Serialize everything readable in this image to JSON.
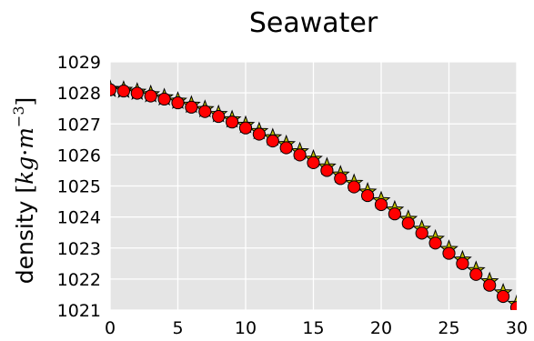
{
  "chart_data": {
    "type": "line",
    "title": "Seawater",
    "ylabel": {
      "prefix": "density ",
      "open_bracket": "[",
      "unit_kg": "kg",
      "unit_dot": "·",
      "unit_m": "m",
      "unit_exp": "−3",
      "close_bracket": "]"
    },
    "xlabel": "",
    "xlim": [
      0,
      30
    ],
    "ylim": [
      1021,
      1029
    ],
    "x_ticks": [
      0,
      5,
      10,
      15,
      20,
      25,
      30
    ],
    "y_ticks": [
      1021,
      1022,
      1023,
      1024,
      1025,
      1026,
      1027,
      1028,
      1029
    ],
    "grid": true,
    "colors": {
      "background": "#e5e5e5",
      "grid": "#ffffff",
      "circle_fill": "#ff0000",
      "circle_edge": "#000000",
      "star_fill": "#bfbf00",
      "star_edge": "#000000"
    },
    "series": [
      {
        "marker": "star",
        "x": [
          0,
          1,
          2,
          3,
          4,
          5,
          6,
          7,
          8,
          9,
          10,
          11,
          12,
          13,
          14,
          15,
          16,
          17,
          18,
          19,
          20,
          21,
          22,
          23,
          24,
          25,
          26,
          27,
          28,
          29,
          30
        ],
        "y": [
          1028.12,
          1028.09,
          1028.03,
          1027.95,
          1027.85,
          1027.74,
          1027.61,
          1027.47,
          1027.31,
          1027.14,
          1026.96,
          1026.76,
          1026.56,
          1026.34,
          1026.11,
          1025.87,
          1025.62,
          1025.36,
          1025.09,
          1024.81,
          1024.53,
          1024.23,
          1023.93,
          1023.61,
          1023.29,
          1022.96,
          1022.62,
          1022.28,
          1021.92,
          1021.56,
          1021.19
        ]
      },
      {
        "marker": "circle",
        "x": [
          0,
          1,
          2,
          3,
          4,
          5,
          6,
          7,
          8,
          9,
          10,
          11,
          12,
          13,
          14,
          15,
          16,
          17,
          18,
          19,
          20,
          21,
          22,
          23,
          24,
          25,
          26,
          27,
          28,
          29,
          30
        ],
        "y": [
          1028.1,
          1028.06,
          1027.99,
          1027.9,
          1027.8,
          1027.68,
          1027.54,
          1027.4,
          1027.24,
          1027.06,
          1026.87,
          1026.67,
          1026.45,
          1026.23,
          1026.0,
          1025.75,
          1025.5,
          1025.24,
          1024.97,
          1024.69,
          1024.4,
          1024.1,
          1023.8,
          1023.48,
          1023.16,
          1022.83,
          1022.5,
          1022.15,
          1021.8,
          1021.44,
          1021.08
        ]
      }
    ]
  }
}
